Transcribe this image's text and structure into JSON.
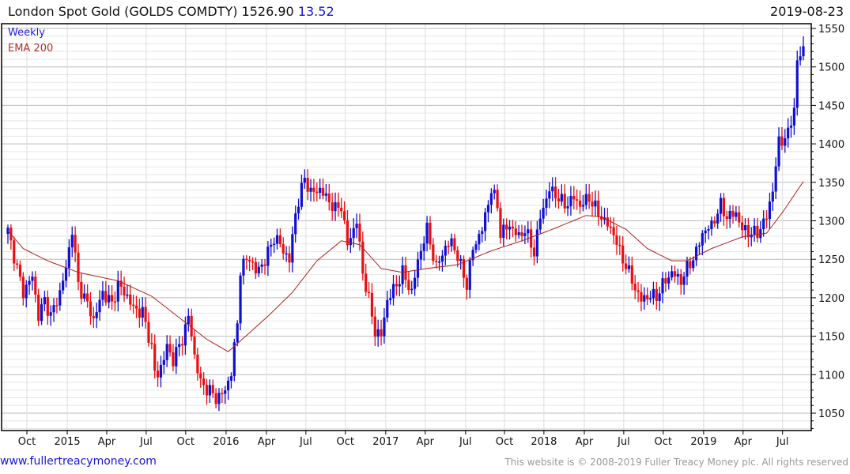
{
  "header": {
    "title": "London Spot Gold (GOLDS COMDTY) 1526.90",
    "change": "13.52",
    "date": "2019-08-23"
  },
  "footer": {
    "site": "www.fullertreacymoney.com",
    "copyright": "This website is © 2008-2019 Fuller Treacy Money plc. All rights reserved"
  },
  "chart_data": {
    "type": "candlestick",
    "title": "London Spot Gold (GOLDS COMDTY)",
    "frequency": "Weekly",
    "last": 1526.9,
    "change": 13.52,
    "colors": {
      "up": "#1010d0",
      "down": "#e81010",
      "ema": "#b02020"
    },
    "legend": [
      "Weekly",
      "EMA 200"
    ],
    "legend_position": "top-left",
    "ylim": [
      1027,
      1556
    ],
    "y_ticks": [
      1050,
      1100,
      1150,
      1200,
      1250,
      1300,
      1350,
      1400,
      1450,
      1500,
      1550
    ],
    "x_range_weeks": [
      0,
      260
    ],
    "x_ticks": [
      {
        "label": "Oct",
        "week": 6.2
      },
      {
        "label": "2015",
        "week": 19.4
      },
      {
        "label": "Apr",
        "week": 32.3
      },
      {
        "label": "Jul",
        "week": 45.2
      },
      {
        "label": "Oct",
        "week": 58.1
      },
      {
        "label": "2016",
        "week": 71.3
      },
      {
        "label": "Apr",
        "week": 84.5
      },
      {
        "label": "Jul",
        "week": 97.4
      },
      {
        "label": "Oct",
        "week": 110.3
      },
      {
        "label": "2017",
        "week": 123.5
      },
      {
        "label": "Apr",
        "week": 136.4
      },
      {
        "label": "Jul",
        "week": 149.6
      },
      {
        "label": "Oct",
        "week": 162.3
      },
      {
        "label": "2018",
        "week": 175.2
      },
      {
        "label": "Apr",
        "week": 188.4
      },
      {
        "label": "Jul",
        "week": 201.3
      },
      {
        "label": "Oct",
        "week": 214.2
      },
      {
        "label": "2019",
        "week": 227.4
      },
      {
        "label": "Apr",
        "week": 240.3
      },
      {
        "label": "Jul",
        "week": 253.2
      }
    ],
    "close_points": [
      [
        0,
        1287
      ],
      [
        3,
        1238
      ],
      [
        5,
        1207
      ],
      [
        8,
        1228
      ],
      [
        10,
        1176
      ],
      [
        12,
        1197
      ],
      [
        14,
        1176
      ],
      [
        17,
        1207
      ],
      [
        19,
        1238
      ],
      [
        21,
        1289
      ],
      [
        23,
        1217
      ],
      [
        26,
        1192
      ],
      [
        28,
        1171
      ],
      [
        31,
        1207
      ],
      [
        34,
        1192
      ],
      [
        36,
        1217
      ],
      [
        39,
        1202
      ],
      [
        41,
        1186
      ],
      [
        44,
        1181
      ],
      [
        47,
        1135
      ],
      [
        48,
        1104
      ],
      [
        49,
        1099
      ],
      [
        52,
        1135
      ],
      [
        54,
        1120
      ],
      [
        57,
        1146
      ],
      [
        59,
        1176
      ],
      [
        61,
        1125
      ],
      [
        63,
        1089
      ],
      [
        66,
        1079
      ],
      [
        68,
        1069
      ],
      [
        71,
        1079
      ],
      [
        73,
        1104
      ],
      [
        75,
        1166
      ],
      [
        76,
        1238
      ],
      [
        79,
        1253
      ],
      [
        81,
        1233
      ],
      [
        84,
        1248
      ],
      [
        87,
        1279
      ],
      [
        89,
        1269
      ],
      [
        92,
        1248
      ],
      [
        94,
        1310
      ],
      [
        97,
        1356
      ],
      [
        99,
        1336
      ],
      [
        102,
        1341
      ],
      [
        105,
        1325
      ],
      [
        107,
        1315
      ],
      [
        109,
        1320
      ],
      [
        111,
        1269
      ],
      [
        112,
        1279
      ],
      [
        114,
        1300
      ],
      [
        116,
        1233
      ],
      [
        118,
        1197
      ],
      [
        120,
        1156
      ],
      [
        122,
        1151
      ],
      [
        124,
        1197
      ],
      [
        127,
        1217
      ],
      [
        129,
        1233
      ],
      [
        132,
        1207
      ],
      [
        134,
        1248
      ],
      [
        137,
        1289
      ],
      [
        140,
        1238
      ],
      [
        142,
        1259
      ],
      [
        145,
        1274
      ],
      [
        147,
        1253
      ],
      [
        150,
        1217
      ],
      [
        152,
        1264
      ],
      [
        155,
        1289
      ],
      [
        158,
        1341
      ],
      [
        160,
        1320
      ],
      [
        161,
        1284
      ],
      [
        164,
        1294
      ],
      [
        167,
        1279
      ],
      [
        169,
        1289
      ],
      [
        172,
        1259
      ],
      [
        174,
        1305
      ],
      [
        177,
        1341
      ],
      [
        180,
        1330
      ],
      [
        182,
        1320
      ],
      [
        185,
        1330
      ],
      [
        187,
        1320
      ],
      [
        190,
        1330
      ],
      [
        193,
        1310
      ],
      [
        195,
        1300
      ],
      [
        198,
        1284
      ],
      [
        200,
        1259
      ],
      [
        203,
        1233
      ],
      [
        205,
        1212
      ],
      [
        207,
        1197
      ],
      [
        209,
        1202
      ],
      [
        212,
        1202
      ],
      [
        214,
        1217
      ],
      [
        217,
        1233
      ],
      [
        220,
        1222
      ],
      [
        222,
        1238
      ],
      [
        225,
        1259
      ],
      [
        227,
        1284
      ],
      [
        230,
        1294
      ],
      [
        233,
        1320
      ],
      [
        235,
        1305
      ],
      [
        238,
        1310
      ],
      [
        240,
        1289
      ],
      [
        243,
        1284
      ],
      [
        245,
        1284
      ],
      [
        248,
        1305
      ],
      [
        250,
        1341
      ],
      [
        252,
        1402
      ],
      [
        255,
        1412
      ],
      [
        257,
        1448
      ],
      [
        258,
        1505
      ],
      [
        260,
        1526.9
      ]
    ],
    "ema_points": [
      [
        0,
        1287
      ],
      [
        5,
        1264
      ],
      [
        13,
        1248
      ],
      [
        23,
        1233
      ],
      [
        36,
        1222
      ],
      [
        47,
        1202
      ],
      [
        57,
        1171
      ],
      [
        65,
        1146
      ],
      [
        72,
        1130
      ],
      [
        78,
        1151
      ],
      [
        85,
        1176
      ],
      [
        93,
        1207
      ],
      [
        101,
        1248
      ],
      [
        109,
        1274
      ],
      [
        115,
        1269
      ],
      [
        122,
        1238
      ],
      [
        129,
        1233
      ],
      [
        137,
        1238
      ],
      [
        147,
        1243
      ],
      [
        158,
        1261
      ],
      [
        168,
        1274
      ],
      [
        178,
        1289
      ],
      [
        189,
        1307
      ],
      [
        194,
        1305
      ],
      [
        202,
        1289
      ],
      [
        209,
        1264
      ],
      [
        217,
        1248
      ],
      [
        222,
        1248
      ],
      [
        230,
        1264
      ],
      [
        240,
        1279
      ],
      [
        248,
        1284
      ],
      [
        253,
        1310
      ],
      [
        260,
        1351
      ]
    ]
  }
}
